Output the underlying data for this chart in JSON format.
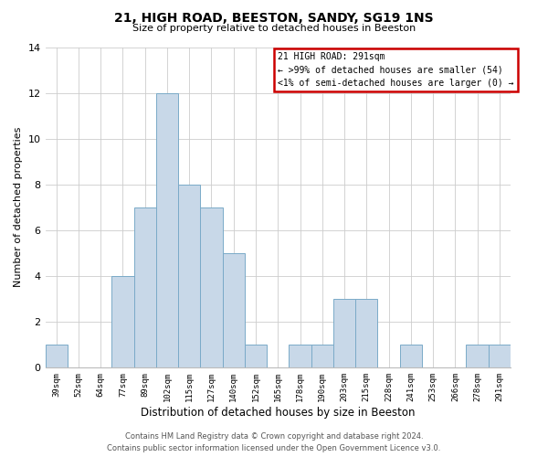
{
  "title": "21, HIGH ROAD, BEESTON, SANDY, SG19 1NS",
  "subtitle": "Size of property relative to detached houses in Beeston",
  "xlabel": "Distribution of detached houses by size in Beeston",
  "ylabel": "Number of detached properties",
  "bin_labels": [
    "39sqm",
    "52sqm",
    "64sqm",
    "77sqm",
    "89sqm",
    "102sqm",
    "115sqm",
    "127sqm",
    "140sqm",
    "152sqm",
    "165sqm",
    "178sqm",
    "190sqm",
    "203sqm",
    "215sqm",
    "228sqm",
    "241sqm",
    "253sqm",
    "266sqm",
    "278sqm",
    "291sqm"
  ],
  "bar_heights": [
    1,
    0,
    0,
    4,
    7,
    12,
    8,
    7,
    5,
    1,
    0,
    1,
    1,
    3,
    3,
    0,
    1,
    0,
    0,
    1,
    1
  ],
  "bar_color": "#c8d8e8",
  "bar_edge_color": "#7aaac8",
  "ylim": [
    0,
    14
  ],
  "yticks": [
    0,
    2,
    4,
    6,
    8,
    10,
    12,
    14
  ],
  "grid_color": "#cccccc",
  "annotation_title": "21 HIGH ROAD: 291sqm",
  "annotation_line2": "← >99% of detached houses are smaller (54)",
  "annotation_line3": "<1% of semi-detached houses are larger (0) →",
  "annotation_box_edge": "#cc0000",
  "footer_line1": "Contains HM Land Registry data © Crown copyright and database right 2024.",
  "footer_line2": "Contains public sector information licensed under the Open Government Licence v3.0."
}
